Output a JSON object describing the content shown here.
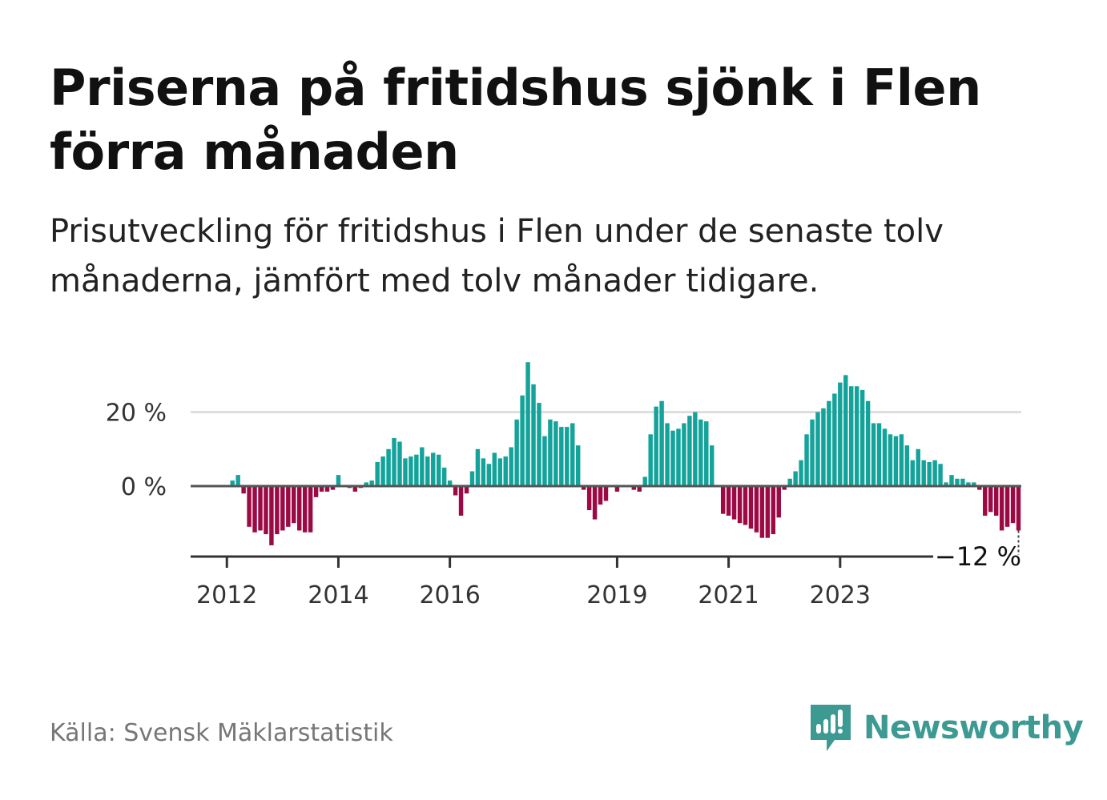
{
  "header": {
    "title_line1": "Priserna på fritidshus sjönk i Flen",
    "title_line2": "förra månaden",
    "subtitle_line1": "Prisutveckling för fritidshus i Flen under de senaste tolv",
    "subtitle_line2": "månaderna, jämfört med tolv månader tidigare."
  },
  "footer": {
    "source": "Källa: Svensk Mäklarstatistik",
    "brand": "Newsworthy",
    "brand_icon": "newsworthy-logo-icon"
  },
  "colors": {
    "positive": "#13a39a",
    "negative": "#9b0a44",
    "gridline": "#dddddd",
    "zero_line": "#555555",
    "axis": "#333333",
    "brand": "#3d9a92"
  },
  "chart_data": {
    "type": "bar",
    "title": "",
    "xlabel": "",
    "ylabel": "",
    "ylim": [
      -18,
      34
    ],
    "y_ticks": [
      0,
      20
    ],
    "y_tick_labels": [
      "0 %",
      "20 %"
    ],
    "grid": "horizontal",
    "x_tick_labels": [
      "2012",
      "2014",
      "2016",
      "2019",
      "2021",
      "2023"
    ],
    "x_tick_indices": [
      6,
      26,
      46,
      76,
      96,
      116
    ],
    "last_value_label": "−12 %",
    "values": [
      0,
      0,
      0,
      0,
      0,
      0,
      0,
      1.5,
      3,
      -2,
      -11,
      -12.5,
      -12,
      -13,
      -16,
      -13,
      -12,
      -11,
      -10,
      -12,
      -12.5,
      -12.5,
      -3,
      -1.5,
      -1.5,
      -1,
      3,
      0,
      -0.5,
      -1.5,
      -0.5,
      1,
      1.5,
      6.5,
      8,
      10,
      13,
      12,
      7.5,
      8,
      8.5,
      10.5,
      8,
      9,
      8.5,
      5,
      1.5,
      -2.5,
      -8,
      -2,
      4,
      10,
      7.5,
      6,
      9,
      7.5,
      8,
      10.5,
      18,
      24.5,
      33.5,
      27.5,
      22.5,
      13.5,
      18,
      17.5,
      16,
      16,
      17,
      11,
      -1,
      -6.5,
      -9,
      -5,
      -4,
      0,
      -1.5,
      0,
      0,
      -1,
      -1.5,
      2.5,
      14,
      21.5,
      23,
      17,
      15,
      15.5,
      17,
      19,
      20,
      18,
      17.5,
      11,
      0,
      -7.5,
      -8,
      -9,
      -10,
      -10.5,
      -11.5,
      -12.5,
      -14,
      -14,
      -13,
      -8.5,
      -1,
      2,
      4,
      7,
      14,
      18,
      20,
      21,
      23,
      25,
      28,
      30,
      27,
      27,
      26,
      23,
      17,
      17,
      15.5,
      14,
      13.5,
      14,
      11,
      7,
      10,
      7,
      6.5,
      7,
      6,
      1,
      3,
      2,
      2,
      1,
      1,
      -1,
      -8,
      -7,
      -8,
      -12,
      -11,
      -10,
      -12
    ]
  }
}
